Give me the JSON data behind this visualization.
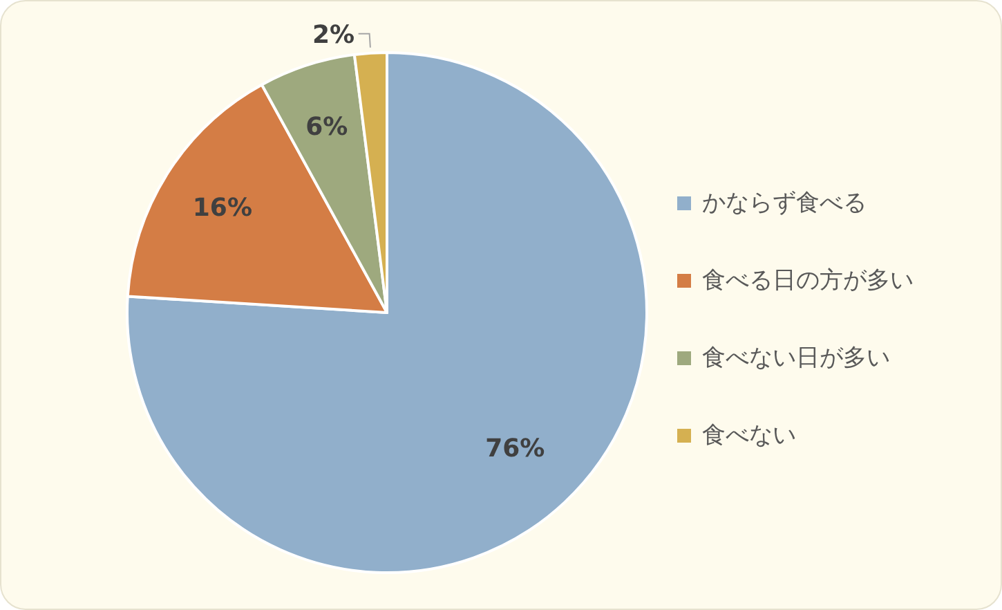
{
  "chart_data": {
    "type": "pie",
    "categories": [
      "かならず食べる",
      "食べる日の方が多い",
      "食べない日が多い",
      "食べない"
    ],
    "values": [
      76,
      16,
      6,
      2
    ],
    "colors": [
      "#91afcb",
      "#d47d45",
      "#9ea97e",
      "#d5b051"
    ],
    "value_labels": [
      "76%",
      "16%",
      "6%",
      "2%"
    ],
    "legend": "right"
  }
}
